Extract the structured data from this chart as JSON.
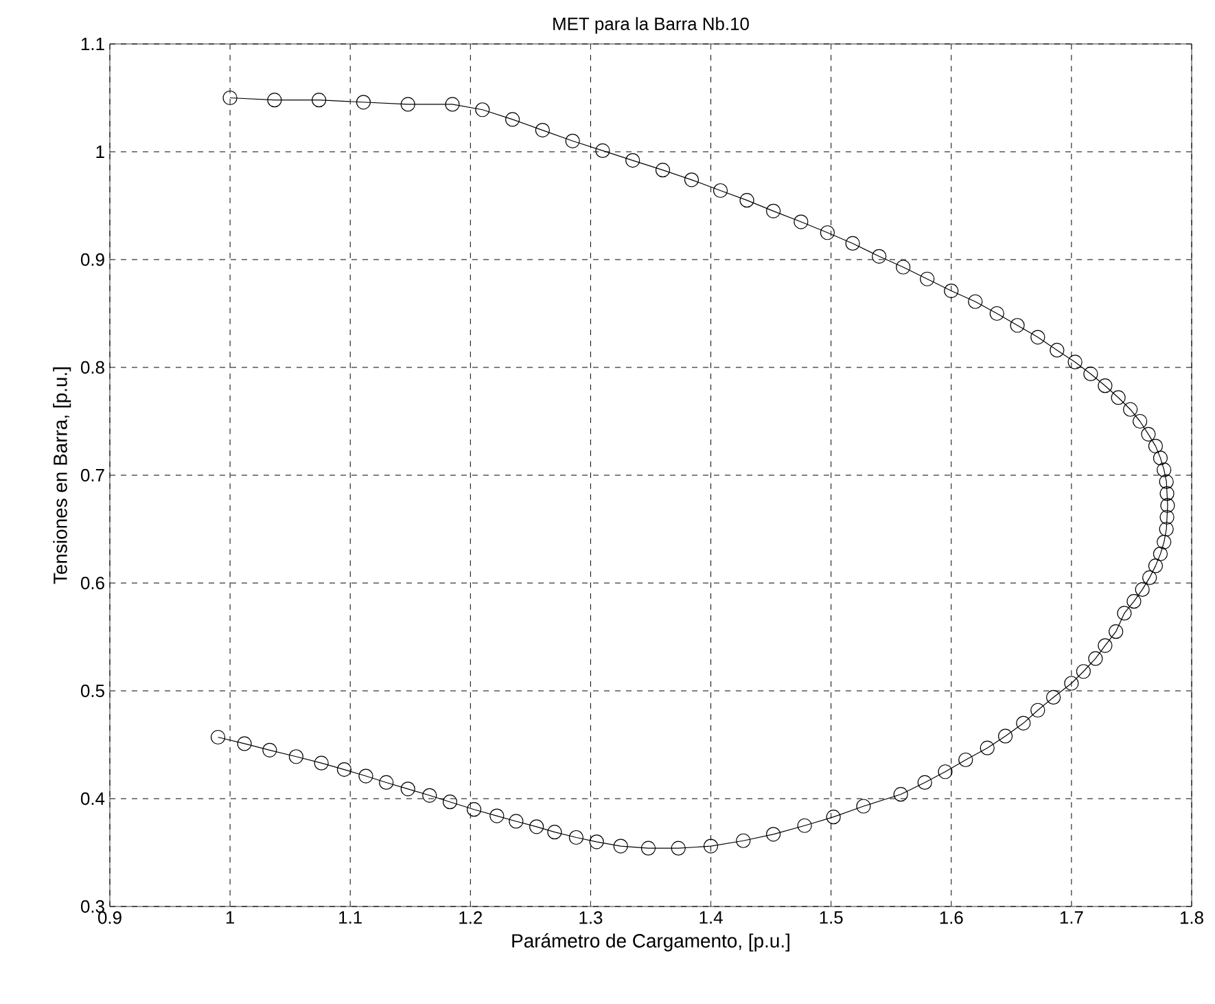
{
  "chart_data": {
    "type": "line",
    "title": "MET para la Barra Nb.10",
    "xlabel": "Parámetro de Cargamento, [p.u.]",
    "ylabel": "Tensiones en Barra, [p.u.]",
    "xlim": [
      0.9,
      1.8
    ],
    "ylim": [
      0.3,
      1.1
    ],
    "xticks": [
      0.9,
      1,
      1.1,
      1.2,
      1.3,
      1.4,
      1.5,
      1.6,
      1.7,
      1.8
    ],
    "yticks": [
      0.3,
      0.4,
      0.5,
      0.6,
      0.7,
      0.8,
      0.9,
      1,
      1.1
    ],
    "grid": true,
    "marker": "circle",
    "line_style": "solid",
    "series": [
      {
        "color": "#000000",
        "x": [
          1.0,
          1.037,
          1.074,
          1.111,
          1.148,
          1.185,
          1.21,
          1.235,
          1.26,
          1.285,
          1.31,
          1.335,
          1.36,
          1.384,
          1.408,
          1.43,
          1.452,
          1.475,
          1.497,
          1.518,
          1.54,
          1.56,
          1.58,
          1.6,
          1.62,
          1.638,
          1.655,
          1.672,
          1.688,
          1.703,
          1.716,
          1.728,
          1.739,
          1.749,
          1.757,
          1.764,
          1.77,
          1.774,
          1.777,
          1.779,
          1.7795,
          1.78,
          1.7795,
          1.779,
          1.777,
          1.774,
          1.77,
          1.765,
          1.759,
          1.752,
          1.744,
          1.737,
          1.728,
          1.72,
          1.71,
          1.7,
          1.685,
          1.672,
          1.66,
          1.645,
          1.63,
          1.612,
          1.595,
          1.578,
          1.558,
          1.527,
          1.502,
          1.478,
          1.452,
          1.427,
          1.4,
          1.373,
          1.348,
          1.325,
          1.305,
          1.288,
          1.27,
          1.255,
          1.238,
          1.222,
          1.203,
          1.183,
          1.166,
          1.148,
          1.13,
          1.113,
          1.095,
          1.076,
          1.055,
          1.033,
          1.012,
          0.99
        ],
        "values": [
          1.05,
          1.048,
          1.048,
          1.046,
          1.044,
          1.044,
          1.039,
          1.03,
          1.02,
          1.01,
          1.001,
          0.992,
          0.983,
          0.974,
          0.964,
          0.955,
          0.945,
          0.935,
          0.925,
          0.915,
          0.903,
          0.893,
          0.882,
          0.871,
          0.861,
          0.85,
          0.839,
          0.828,
          0.816,
          0.805,
          0.794,
          0.783,
          0.772,
          0.761,
          0.75,
          0.738,
          0.727,
          0.716,
          0.705,
          0.694,
          0.683,
          0.672,
          0.661,
          0.65,
          0.638,
          0.627,
          0.616,
          0.605,
          0.594,
          0.583,
          0.572,
          0.555,
          0.542,
          0.53,
          0.518,
          0.507,
          0.494,
          0.482,
          0.47,
          0.458,
          0.447,
          0.436,
          0.425,
          0.415,
          0.404,
          0.393,
          0.383,
          0.375,
          0.367,
          0.361,
          0.356,
          0.354,
          0.354,
          0.356,
          0.36,
          0.364,
          0.369,
          0.374,
          0.379,
          0.384,
          0.39,
          0.397,
          0.403,
          0.409,
          0.415,
          0.421,
          0.427,
          0.433,
          0.439,
          0.445,
          0.451,
          0.457
        ]
      }
    ]
  }
}
